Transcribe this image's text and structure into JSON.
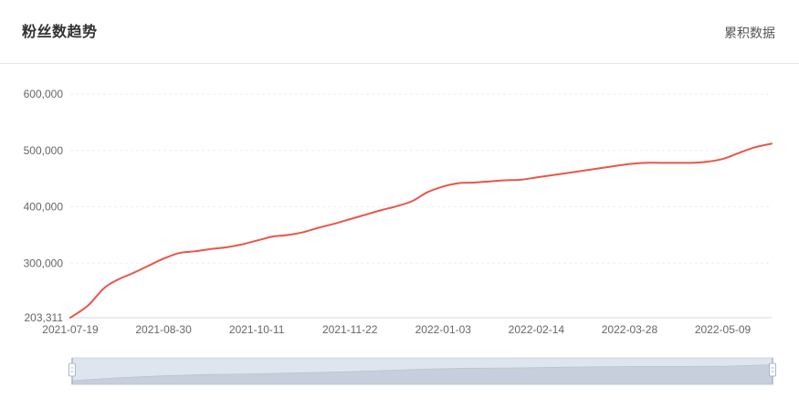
{
  "header": {
    "title": "粉丝数趋势",
    "toggle_label": "累积数据"
  },
  "colors": {
    "line": "#e8564a",
    "grid": "#efefef",
    "axis": "#d9d9d9",
    "slider_bg": "#dfe5ee",
    "slider_fill": "#c7cfdc",
    "slider_handle": "#a9b6c8"
  },
  "chart_data": {
    "type": "line",
    "title": "粉丝数趋势",
    "xlabel": "",
    "ylabel": "",
    "x_tick_labels": [
      "2021-07-19",
      "2021-08-30",
      "2021-10-11",
      "2021-11-22",
      "2022-01-03",
      "2022-02-14",
      "2022-03-28",
      "2022-05-09"
    ],
    "y_tick_labels": [
      "203,311",
      "300,000",
      "400,000",
      "500,000",
      "600,000"
    ],
    "y_tick_values": [
      203311,
      300000,
      400000,
      500000,
      600000
    ],
    "ylim": [
      203311,
      600000
    ],
    "xlim": [
      "2021-07-19",
      "2022-05-31"
    ],
    "grid": true,
    "series": [
      {
        "x": [
          "2021-07-19",
          "2021-07-27",
          "2021-08-03",
          "2021-08-09",
          "2021-08-16",
          "2021-08-23",
          "2021-08-30",
          "2021-09-06",
          "2021-09-13",
          "2021-09-20",
          "2021-09-27",
          "2021-10-04",
          "2021-10-11",
          "2021-10-18",
          "2021-10-25",
          "2021-11-01",
          "2021-11-08",
          "2021-11-15",
          "2021-11-22",
          "2021-11-29",
          "2021-12-06",
          "2021-12-13",
          "2021-12-20",
          "2021-12-27",
          "2022-01-03",
          "2022-01-10",
          "2022-01-17",
          "2022-01-24",
          "2022-01-31",
          "2022-02-07",
          "2022-02-14",
          "2022-02-21",
          "2022-02-28",
          "2022-03-07",
          "2022-03-14",
          "2022-03-21",
          "2022-03-28",
          "2022-04-04",
          "2022-04-11",
          "2022-04-18",
          "2022-04-25",
          "2022-05-02",
          "2022-05-09",
          "2022-05-16",
          "2022-05-23",
          "2022-05-31"
        ],
        "values": [
          203311,
          225000,
          255000,
          270000,
          282000,
          295000,
          308000,
          318000,
          321000,
          325000,
          328000,
          333000,
          340000,
          347000,
          350000,
          355000,
          363000,
          370000,
          378000,
          386000,
          394000,
          401000,
          410000,
          426000,
          436000,
          442000,
          443000,
          445000,
          447000,
          448000,
          452000,
          456000,
          460000,
          464000,
          468000,
          472000,
          476000,
          478000,
          478000,
          478000,
          478000,
          480000,
          485000,
          495000,
          505000,
          512000
        ]
      }
    ]
  },
  "slider": {
    "start": 0,
    "end": 1,
    "preview_values": [
      203311,
      255000,
      295000,
      321000,
      333000,
      350000,
      370000,
      394000,
      426000,
      443000,
      448000,
      460000,
      472000,
      478000,
      478000,
      485000,
      512000
    ]
  }
}
